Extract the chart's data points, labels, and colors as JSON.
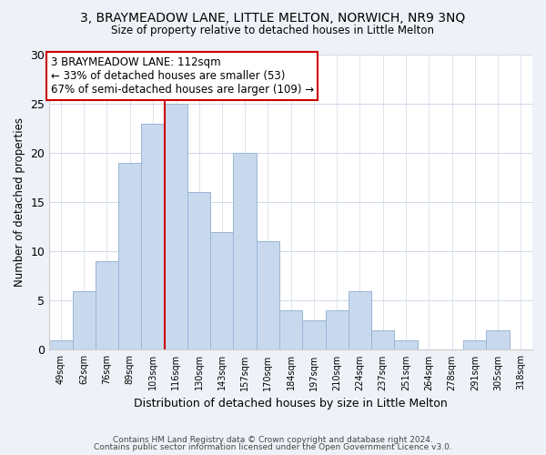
{
  "title": "3, BRAYMEADOW LANE, LITTLE MELTON, NORWICH, NR9 3NQ",
  "subtitle": "Size of property relative to detached houses in Little Melton",
  "xlabel": "Distribution of detached houses by size in Little Melton",
  "ylabel": "Number of detached properties",
  "bin_labels": [
    "49sqm",
    "62sqm",
    "76sqm",
    "89sqm",
    "103sqm",
    "116sqm",
    "130sqm",
    "143sqm",
    "157sqm",
    "170sqm",
    "184sqm",
    "197sqm",
    "210sqm",
    "224sqm",
    "237sqm",
    "251sqm",
    "264sqm",
    "278sqm",
    "291sqm",
    "305sqm",
    "318sqm"
  ],
  "bar_values": [
    1,
    6,
    9,
    19,
    23,
    25,
    16,
    12,
    20,
    11,
    4,
    3,
    4,
    6,
    2,
    1,
    0,
    0,
    1,
    2,
    0
  ],
  "bar_color": "#c8d9ee",
  "bar_edge_color": "#9ab5d5",
  "vline_x": 4.5,
  "vline_color": "#cc0000",
  "annotation_title": "3 BRAYMEADOW LANE: 112sqm",
  "annotation_line1": "← 33% of detached houses are smaller (53)",
  "annotation_line2": "67% of semi-detached houses are larger (109) →",
  "annotation_box_color": "#ffffff",
  "annotation_box_edge": "#cc0000",
  "ylim": [
    0,
    30
  ],
  "yticks": [
    0,
    5,
    10,
    15,
    20,
    25,
    30
  ],
  "footer1": "Contains HM Land Registry data © Crown copyright and database right 2024.",
  "footer2": "Contains public sector information licensed under the Open Government Licence v3.0.",
  "bg_color": "#eef2f8",
  "plot_bg_color": "#ffffff",
  "grid_color": "#d0d8e8"
}
